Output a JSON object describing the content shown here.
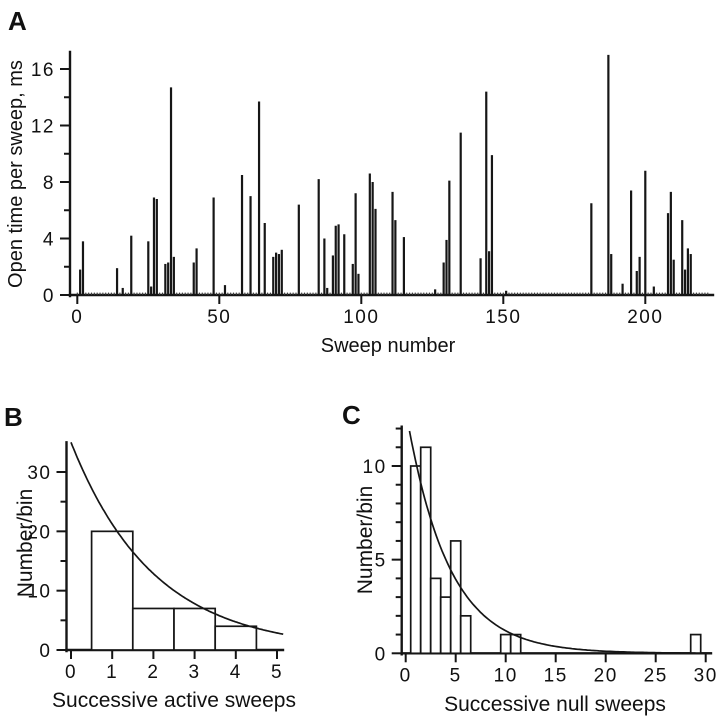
{
  "figure": {
    "background": "#ffffff",
    "ink": "#161616"
  },
  "panels": [
    {
      "letter": "A"
    },
    {
      "letter": "B"
    },
    {
      "letter": "C"
    }
  ],
  "chart_data": [
    {
      "id": "A",
      "type": "bar",
      "title": "",
      "xlabel": "Sweep number",
      "ylabel": "Open time per sweep, ms",
      "xlim": [
        0,
        223
      ],
      "ylim": [
        0,
        17.2
      ],
      "xticks": [
        0,
        50,
        100,
        150,
        200
      ],
      "yticks": [
        0,
        4,
        8,
        12,
        16
      ],
      "yticks_minor": [
        2,
        6,
        10,
        14
      ],
      "baseline": [
        0,
        222
      ],
      "points": [
        [
          1,
          1.8
        ],
        [
          2,
          3.8
        ],
        [
          14,
          1.9
        ],
        [
          16,
          0.5
        ],
        [
          19,
          4.2
        ],
        [
          25,
          3.8
        ],
        [
          26,
          0.6
        ],
        [
          27,
          6.9
        ],
        [
          28,
          6.8
        ],
        [
          31,
          2.2
        ],
        [
          32,
          2.3
        ],
        [
          33,
          14.7
        ],
        [
          34,
          2.7
        ],
        [
          41,
          2.3
        ],
        [
          42,
          3.3
        ],
        [
          48,
          6.9
        ],
        [
          52,
          0.7
        ],
        [
          58,
          8.5
        ],
        [
          61,
          7.0
        ],
        [
          64,
          13.7
        ],
        [
          66,
          5.1
        ],
        [
          69,
          2.7
        ],
        [
          70,
          3.0
        ],
        [
          71,
          2.9
        ],
        [
          72,
          3.2
        ],
        [
          78,
          6.4
        ],
        [
          85,
          8.2
        ],
        [
          87,
          4.0
        ],
        [
          88,
          0.5
        ],
        [
          90,
          2.8
        ],
        [
          91,
          4.9
        ],
        [
          92,
          5.0
        ],
        [
          94,
          4.3
        ],
        [
          97,
          2.2
        ],
        [
          98,
          7.2
        ],
        [
          99,
          1.5
        ],
        [
          103,
          8.6
        ],
        [
          104,
          8.0
        ],
        [
          105,
          6.1
        ],
        [
          111,
          7.3
        ],
        [
          112,
          5.3
        ],
        [
          115,
          4.1
        ],
        [
          126,
          0.4
        ],
        [
          129,
          2.3
        ],
        [
          130,
          3.9
        ],
        [
          131,
          8.1
        ],
        [
          135,
          11.5
        ],
        [
          142,
          2.6
        ],
        [
          144,
          14.4
        ],
        [
          145,
          3.1
        ],
        [
          146,
          9.9
        ],
        [
          151,
          0.3
        ],
        [
          181,
          6.5
        ],
        [
          187,
          17.0
        ],
        [
          188,
          2.9
        ],
        [
          192,
          0.8
        ],
        [
          195,
          7.4
        ],
        [
          197,
          1.7
        ],
        [
          198,
          2.7
        ],
        [
          200,
          8.8
        ],
        [
          203,
          0.6
        ],
        [
          208,
          5.8
        ],
        [
          209,
          7.3
        ],
        [
          210,
          2.5
        ],
        [
          213,
          5.3
        ],
        [
          214,
          1.8
        ],
        [
          215,
          3.3
        ],
        [
          216,
          2.9
        ]
      ]
    },
    {
      "id": "B",
      "type": "histogram",
      "title": "",
      "xlabel": "Successive active sweeps",
      "ylabel": "Number/bin",
      "xlim": [
        0,
        5.2
      ],
      "ylim": [
        0,
        35
      ],
      "xticks": [
        0,
        1,
        2,
        3,
        4,
        5
      ],
      "yticks": [
        0,
        10,
        20,
        30
      ],
      "yticks_minor": [
        5,
        15,
        25
      ],
      "bins": [
        {
          "center": 1,
          "count": 20
        },
        {
          "center": 2,
          "count": 7
        },
        {
          "center": 3,
          "count": 7
        },
        {
          "center": 4,
          "count": 4
        }
      ],
      "curve": {
        "type": "exponential",
        "amplitude": 35,
        "tau": 2,
        "x_end": 5.15
      }
    },
    {
      "id": "C",
      "type": "histogram",
      "title": "",
      "xlabel": "Successive null sweeps",
      "ylabel": "Number/bin",
      "xlim": [
        0,
        31
      ],
      "ylim": [
        0,
        12.1
      ],
      "xticks": [
        0,
        5,
        10,
        15,
        20,
        25,
        30
      ],
      "yticks": [
        0,
        5,
        10
      ],
      "yticks_minor": [
        1,
        2,
        3,
        4,
        6,
        7,
        8,
        9,
        11,
        12
      ],
      "bins": [
        {
          "center": 1,
          "count": 10
        },
        {
          "center": 2,
          "count": 11
        },
        {
          "center": 3,
          "count": 4
        },
        {
          "center": 4,
          "count": 3
        },
        {
          "center": 5,
          "count": 6
        },
        {
          "center": 6,
          "count": 2
        },
        {
          "center": 10,
          "count": 1
        },
        {
          "center": 11,
          "count": 1
        },
        {
          "center": 29,
          "count": 1
        }
      ],
      "curve": {
        "type": "exponential",
        "amplitude": 13,
        "tau": 4.2,
        "x_end": 30.6
      }
    }
  ]
}
